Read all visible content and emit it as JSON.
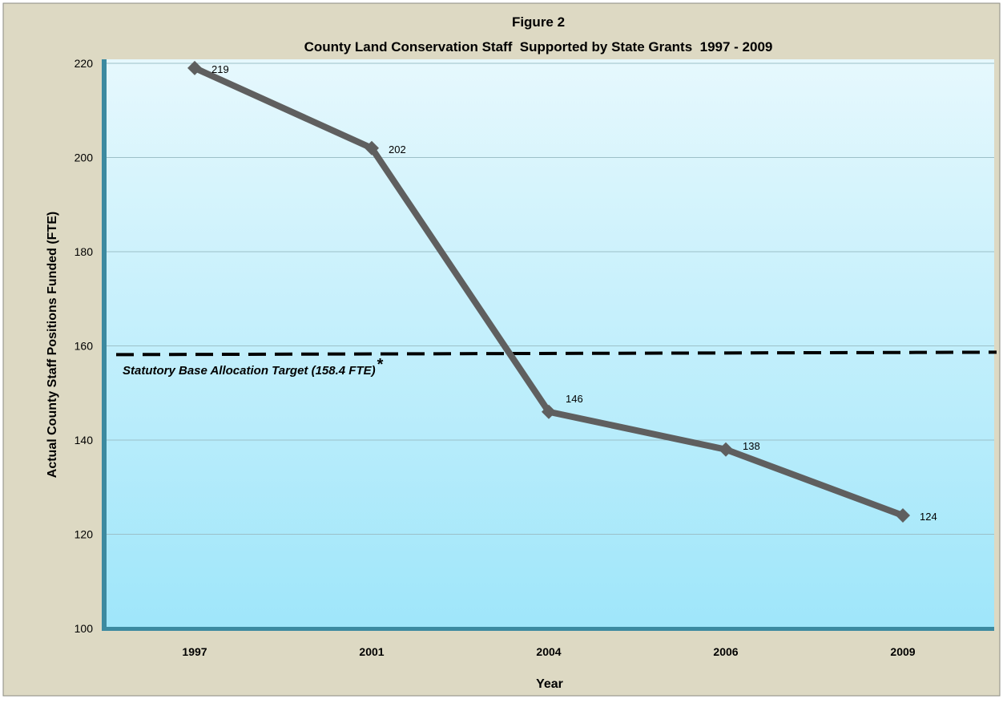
{
  "chart_data": {
    "type": "line",
    "title": "Figure 2",
    "subtitle": "County Land Conservation Staff  Supported by State Grants  1997 - 2009",
    "xlabel": "Year",
    "ylabel": "Actual County Staff Positions Funded (FTE)",
    "categories": [
      "1997",
      "2001",
      "2004",
      "2006",
      "2009"
    ],
    "series": [
      {
        "values": [
          219,
          202,
          146,
          138,
          124
        ],
        "labels": [
          "219",
          "202",
          "146",
          "138",
          "124"
        ]
      }
    ],
    "ylim": [
      100,
      220
    ],
    "yticks": [
      100,
      120,
      140,
      160,
      180,
      200,
      220
    ],
    "grid": true,
    "reference_line": {
      "value": 158.4,
      "label": "Statutory Base Allocation Target (158.4 FTE)",
      "marker": "*"
    },
    "colors": {
      "line": "#5f5f5f",
      "reference": "#000000",
      "frame_background": "#ddd9c3",
      "plot_top": "#e6f8fd",
      "plot_bottom": "#9fe6fa",
      "axis_wall": "#3c8aa0",
      "gridline": "#9cc0c8"
    }
  }
}
